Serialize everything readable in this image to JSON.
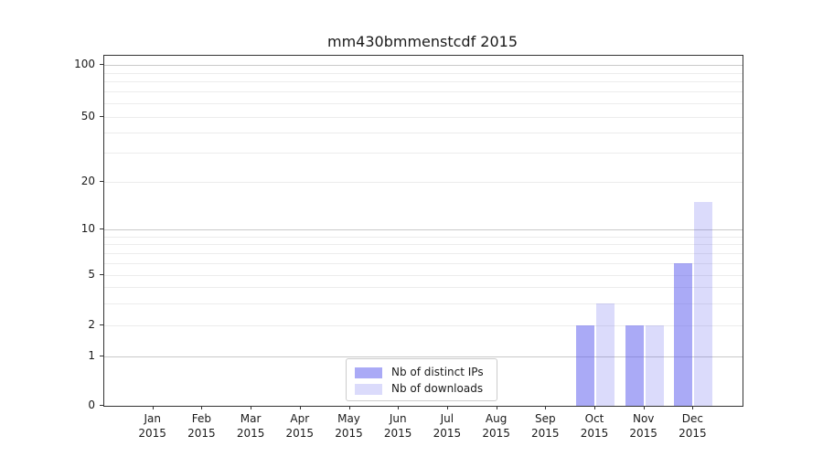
{
  "chart_data": {
    "type": "bar",
    "title": "mm430bmmenstcdf 2015",
    "categories": [
      "Jan",
      "Feb",
      "Mar",
      "Apr",
      "May",
      "Jun",
      "Jul",
      "Aug",
      "Sep",
      "Oct",
      "Nov",
      "Dec"
    ],
    "category_year": "2015",
    "series": [
      {
        "name": "Nb of distinct IPs",
        "color": "rgba(85,85,238,0.5)",
        "values": [
          0,
          0,
          0,
          0,
          0,
          0,
          0,
          0,
          0,
          2,
          2,
          6
        ]
      },
      {
        "name": "Nb of downloads",
        "color": "rgba(85,85,238,0.21)",
        "values": [
          0,
          0,
          0,
          0,
          0,
          0,
          0,
          0,
          0,
          3,
          2,
          15
        ]
      }
    ],
    "y_axis": {
      "scale": "symlog",
      "tick_values": [
        0,
        1,
        2,
        5,
        10,
        20,
        50,
        100
      ],
      "tick_labels": [
        "0",
        "1",
        "2",
        "5",
        "10",
        "20",
        "50",
        "100"
      ],
      "lim": [
        0,
        114
      ],
      "major_gridlines": [
        1,
        10,
        100
      ],
      "minor_gridlines": [
        2,
        3,
        4,
        5,
        6,
        7,
        8,
        9,
        20,
        30,
        40,
        50,
        60,
        70,
        80,
        90
      ]
    },
    "xlabel": "",
    "ylabel": "",
    "grid": true,
    "legend_position": "lower center",
    "colors": {
      "major_grid": "#c9c9c9",
      "minor_grid": "#ececec",
      "axis": "#333333",
      "text": "#1a1a1a",
      "background": "#ffffff"
    }
  }
}
